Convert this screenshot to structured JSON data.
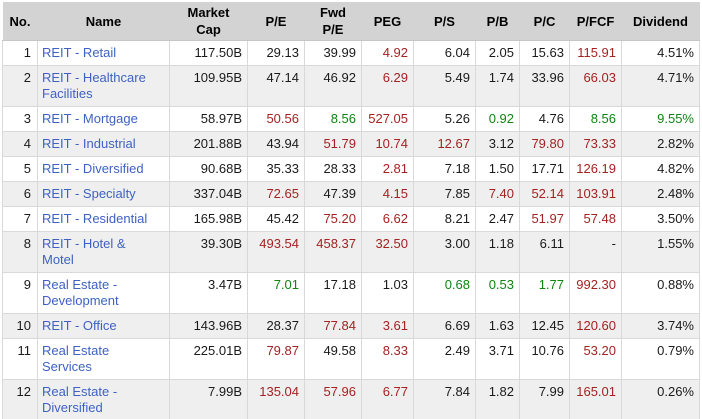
{
  "colors": {
    "header_bg": "#d3d3d3",
    "alt_row_bg": "#efefef",
    "link_blue": "#3e62c4",
    "negative_red": "#a42222",
    "positive_green": "#0f8410"
  },
  "table": {
    "columns": [
      {
        "label": "No."
      },
      {
        "label": "Name"
      },
      {
        "label": "Market\nCap"
      },
      {
        "label": "P/E"
      },
      {
        "label": "Fwd\nP/E"
      },
      {
        "label": "PEG"
      },
      {
        "label": "P/S"
      },
      {
        "label": "P/B"
      },
      {
        "label": "P/C"
      },
      {
        "label": "P/FCF"
      },
      {
        "label": "Dividend"
      }
    ],
    "rows": [
      {
        "no": "1",
        "name": "REIT - Retail",
        "cells": [
          {
            "v": "117.50B",
            "c": "black"
          },
          {
            "v": "29.13",
            "c": "black"
          },
          {
            "v": "39.99",
            "c": "black"
          },
          {
            "v": "4.92",
            "c": "red"
          },
          {
            "v": "6.04",
            "c": "black"
          },
          {
            "v": "2.05",
            "c": "black"
          },
          {
            "v": "15.63",
            "c": "black"
          },
          {
            "v": "115.91",
            "c": "red"
          },
          {
            "v": "4.51%",
            "c": "black"
          }
        ]
      },
      {
        "no": "2",
        "name": "REIT - Healthcare\nFacilities",
        "cells": [
          {
            "v": "109.95B",
            "c": "black"
          },
          {
            "v": "47.14",
            "c": "black"
          },
          {
            "v": "46.92",
            "c": "black"
          },
          {
            "v": "6.29",
            "c": "red"
          },
          {
            "v": "5.49",
            "c": "black"
          },
          {
            "v": "1.74",
            "c": "black"
          },
          {
            "v": "33.96",
            "c": "black"
          },
          {
            "v": "66.03",
            "c": "red"
          },
          {
            "v": "4.71%",
            "c": "black"
          }
        ]
      },
      {
        "no": "3",
        "name": "REIT - Mortgage",
        "cells": [
          {
            "v": "58.97B",
            "c": "black"
          },
          {
            "v": "50.56",
            "c": "red"
          },
          {
            "v": "8.56",
            "c": "green"
          },
          {
            "v": "527.05",
            "c": "red"
          },
          {
            "v": "5.26",
            "c": "black"
          },
          {
            "v": "0.92",
            "c": "green"
          },
          {
            "v": "4.76",
            "c": "black"
          },
          {
            "v": "8.56",
            "c": "green"
          },
          {
            "v": "9.55%",
            "c": "green"
          }
        ]
      },
      {
        "no": "4",
        "name": "REIT - Industrial",
        "cells": [
          {
            "v": "201.88B",
            "c": "black"
          },
          {
            "v": "43.94",
            "c": "black"
          },
          {
            "v": "51.79",
            "c": "red"
          },
          {
            "v": "10.74",
            "c": "red"
          },
          {
            "v": "12.67",
            "c": "red"
          },
          {
            "v": "3.12",
            "c": "black"
          },
          {
            "v": "79.80",
            "c": "red"
          },
          {
            "v": "73.33",
            "c": "red"
          },
          {
            "v": "2.82%",
            "c": "black"
          }
        ]
      },
      {
        "no": "5",
        "name": "REIT - Diversified",
        "cells": [
          {
            "v": "90.68B",
            "c": "black"
          },
          {
            "v": "35.33",
            "c": "black"
          },
          {
            "v": "28.33",
            "c": "black"
          },
          {
            "v": "2.81",
            "c": "red"
          },
          {
            "v": "7.18",
            "c": "black"
          },
          {
            "v": "1.50",
            "c": "black"
          },
          {
            "v": "17.71",
            "c": "black"
          },
          {
            "v": "126.19",
            "c": "red"
          },
          {
            "v": "4.82%",
            "c": "black"
          }
        ]
      },
      {
        "no": "6",
        "name": "REIT - Specialty",
        "cells": [
          {
            "v": "337.04B",
            "c": "black"
          },
          {
            "v": "72.65",
            "c": "red"
          },
          {
            "v": "47.39",
            "c": "black"
          },
          {
            "v": "4.15",
            "c": "red"
          },
          {
            "v": "7.85",
            "c": "black"
          },
          {
            "v": "7.40",
            "c": "red"
          },
          {
            "v": "52.14",
            "c": "red"
          },
          {
            "v": "103.91",
            "c": "red"
          },
          {
            "v": "2.48%",
            "c": "black"
          }
        ]
      },
      {
        "no": "7",
        "name": "REIT - Residential",
        "cells": [
          {
            "v": "165.98B",
            "c": "black"
          },
          {
            "v": "45.42",
            "c": "black"
          },
          {
            "v": "75.20",
            "c": "red"
          },
          {
            "v": "6.62",
            "c": "red"
          },
          {
            "v": "8.21",
            "c": "black"
          },
          {
            "v": "2.47",
            "c": "black"
          },
          {
            "v": "51.97",
            "c": "red"
          },
          {
            "v": "57.48",
            "c": "red"
          },
          {
            "v": "3.50%",
            "c": "black"
          }
        ]
      },
      {
        "no": "8",
        "name": "REIT - Hotel &\nMotel",
        "cells": [
          {
            "v": "39.30B",
            "c": "black"
          },
          {
            "v": "493.54",
            "c": "red"
          },
          {
            "v": "458.37",
            "c": "red"
          },
          {
            "v": "32.50",
            "c": "red"
          },
          {
            "v": "3.00",
            "c": "black"
          },
          {
            "v": "1.18",
            "c": "black"
          },
          {
            "v": "6.11",
            "c": "black"
          },
          {
            "v": "-",
            "c": "black"
          },
          {
            "v": "1.55%",
            "c": "black"
          }
        ]
      },
      {
        "no": "9",
        "name": "Real Estate -\nDevelopment",
        "cells": [
          {
            "v": "3.47B",
            "c": "black"
          },
          {
            "v": "7.01",
            "c": "green"
          },
          {
            "v": "17.18",
            "c": "black"
          },
          {
            "v": "1.03",
            "c": "black"
          },
          {
            "v": "0.68",
            "c": "green"
          },
          {
            "v": "0.53",
            "c": "green"
          },
          {
            "v": "1.77",
            "c": "green"
          },
          {
            "v": "992.30",
            "c": "red"
          },
          {
            "v": "0.88%",
            "c": "black"
          }
        ]
      },
      {
        "no": "10",
        "name": "REIT - Office",
        "cells": [
          {
            "v": "143.96B",
            "c": "black"
          },
          {
            "v": "28.37",
            "c": "black"
          },
          {
            "v": "77.84",
            "c": "red"
          },
          {
            "v": "3.61",
            "c": "red"
          },
          {
            "v": "6.69",
            "c": "black"
          },
          {
            "v": "1.63",
            "c": "black"
          },
          {
            "v": "12.45",
            "c": "black"
          },
          {
            "v": "120.60",
            "c": "red"
          },
          {
            "v": "3.74%",
            "c": "black"
          }
        ]
      },
      {
        "no": "11",
        "name": "Real Estate\nServices",
        "cells": [
          {
            "v": "225.01B",
            "c": "black"
          },
          {
            "v": "79.87",
            "c": "red"
          },
          {
            "v": "49.58",
            "c": "black"
          },
          {
            "v": "8.33",
            "c": "red"
          },
          {
            "v": "2.49",
            "c": "black"
          },
          {
            "v": "3.71",
            "c": "black"
          },
          {
            "v": "10.76",
            "c": "black"
          },
          {
            "v": "53.20",
            "c": "red"
          },
          {
            "v": "0.79%",
            "c": "black"
          }
        ]
      },
      {
        "no": "12",
        "name": "Real Estate -\nDiversified",
        "cells": [
          {
            "v": "7.99B",
            "c": "black"
          },
          {
            "v": "135.04",
            "c": "red"
          },
          {
            "v": "57.96",
            "c": "red"
          },
          {
            "v": "6.77",
            "c": "red"
          },
          {
            "v": "7.84",
            "c": "black"
          },
          {
            "v": "1.82",
            "c": "black"
          },
          {
            "v": "7.99",
            "c": "black"
          },
          {
            "v": "165.01",
            "c": "red"
          },
          {
            "v": "0.26%",
            "c": "black"
          }
        ]
      }
    ]
  }
}
